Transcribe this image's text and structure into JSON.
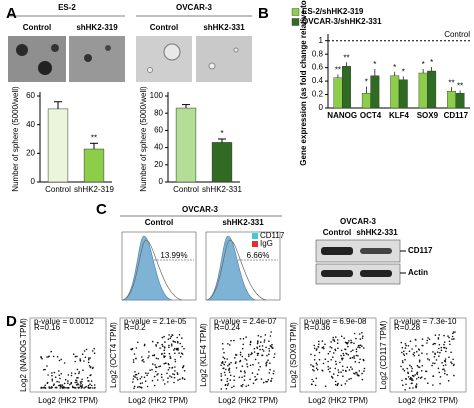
{
  "panel_labels": [
    "A",
    "B",
    "C",
    "D"
  ],
  "panel_a": {
    "lines": [
      {
        "name": "ES-2",
        "groups": [
          "Control",
          "shHK2-319"
        ]
      },
      {
        "name": "OVCAR-3",
        "groups": [
          "Control",
          "shHK2-331"
        ]
      }
    ],
    "charts": [
      {
        "type": "bar",
        "ylabel": "Number of sphere (5000/well)",
        "categories": [
          "Control",
          "shHK2-319"
        ],
        "values": [
          51,
          23
        ],
        "errors": [
          5,
          4
        ],
        "colors": [
          "#eaf6da",
          "#8ccd4a"
        ],
        "significance": {
          "index": 1,
          "label": "**"
        },
        "ylim": [
          0,
          60
        ],
        "yticks": [
          0,
          20,
          40,
          60
        ]
      },
      {
        "type": "bar",
        "ylabel": "Number of sphere (5000/well)",
        "categories": [
          "Control",
          "shHK2-331"
        ],
        "values": [
          86,
          46
        ],
        "errors": [
          4,
          4
        ],
        "colors": [
          "#b4dd96",
          "#2f6b22"
        ],
        "significance": {
          "index": 1,
          "label": "*"
        },
        "ylim": [
          0,
          100
        ],
        "yticks": [
          0,
          20,
          40,
          60,
          80,
          100
        ]
      }
    ]
  },
  "panel_b": {
    "chart_data": {
      "type": "grouped-bar",
      "ylabel": "Gene expression (as fold change relative to control)",
      "categories": [
        "NANOG",
        "OCT4",
        "KLF4",
        "SOX9",
        "CD117"
      ],
      "series": [
        {
          "name": "ES-2/shHK2-319",
          "color": "#8ccd4a",
          "values": [
            0.45,
            0.22,
            0.48,
            0.52,
            0.25
          ],
          "errors": [
            0.05,
            0.1,
            0.06,
            0.06,
            0.06
          ],
          "significance": [
            "**",
            "*",
            "*",
            "*",
            "**"
          ]
        },
        {
          "name": "OVCAR-3/shHK2-331",
          "color": "#2f6b22",
          "values": [
            0.62,
            0.48,
            0.42,
            0.55,
            0.22
          ],
          "errors": [
            0.06,
            0.1,
            0.05,
            0.06,
            0.04
          ],
          "significance": [
            "**",
            "*",
            "*",
            "*",
            "**"
          ]
        }
      ],
      "reference": {
        "value": 1,
        "label": "Control"
      },
      "ylim": [
        0,
        1.1
      ],
      "yticks": [
        0,
        0.2,
        0.4,
        0.6,
        0.8,
        1
      ]
    }
  },
  "panel_c": {
    "title": "OVCAR-3",
    "histograms": [
      {
        "label": "Control",
        "percent": "13.99%"
      },
      {
        "label": "shHK2-331",
        "percent": "6.66%"
      }
    ],
    "legend": [
      "CD117",
      "IgG"
    ],
    "western": {
      "title": "OVCAR-3",
      "lanes": [
        "Control",
        "shHK2-331"
      ],
      "bands": [
        "CD117",
        "Actin"
      ]
    }
  },
  "panel_d": {
    "xlabel": "Log2 (HK2 TPM)",
    "plots": [
      {
        "p": "p-value = 0.0012",
        "r": "R=0.16",
        "ylabel": "Log2 (NANOG TPM)"
      },
      {
        "p": "p-value = 2.1e-05",
        "r": "R=0.2",
        "ylabel": "Log2 (OCT4 TPM)"
      },
      {
        "p": "p-value = 2.4e-07",
        "r": "R=0.24",
        "ylabel": "Log2 (KLF4 TPM)"
      },
      {
        "p": "p-value = 6.9e-08",
        "r": "R=0.36",
        "ylabel": "Log2 (SOX9 TPM)"
      },
      {
        "p": "p-value = 7.3e-10",
        "r": "R=0.28",
        "ylabel": "Log2 (CD117 TPM)"
      }
    ]
  }
}
